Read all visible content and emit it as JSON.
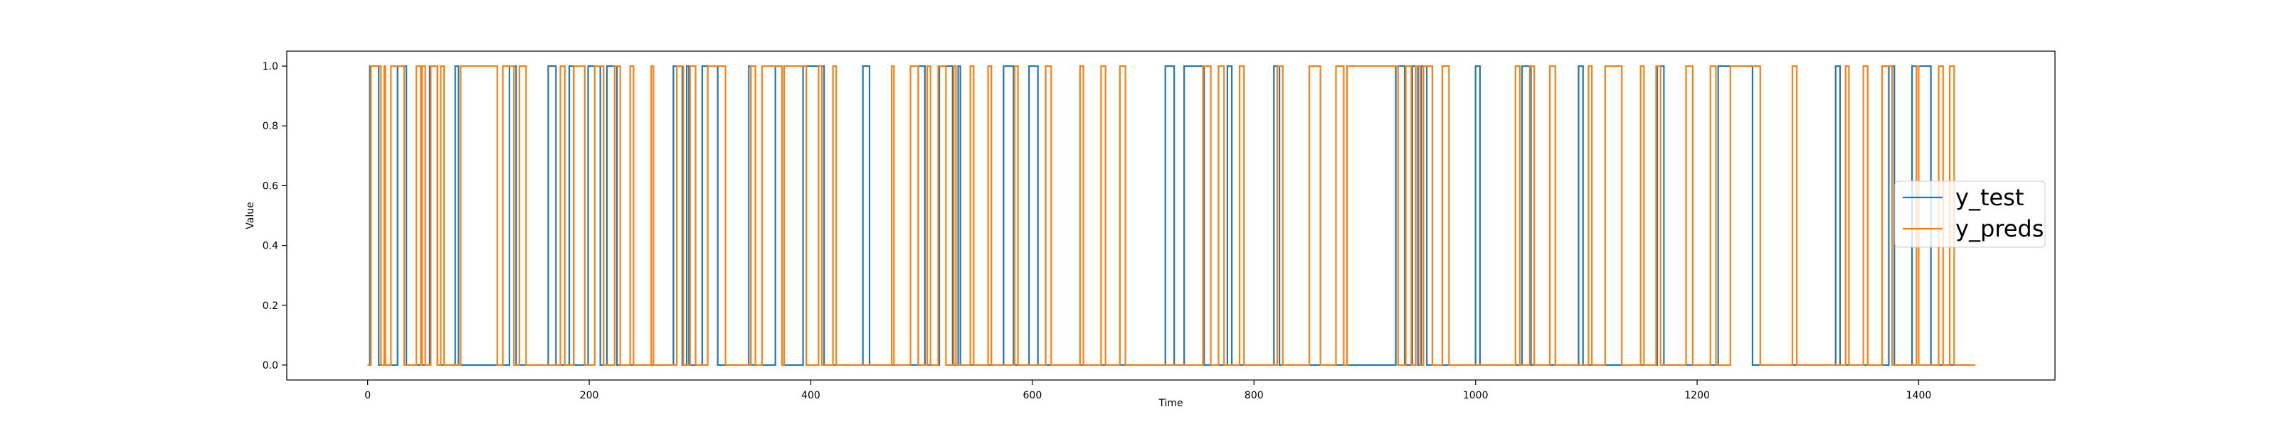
{
  "chart_data": {
    "type": "line",
    "title": "",
    "xlabel": "Time",
    "ylabel": "Value",
    "xlim": [
      -73,
      1523
    ],
    "ylim": [
      -0.05,
      1.05
    ],
    "x_ticks": [
      0,
      200,
      400,
      600,
      800,
      1000,
      1200,
      1400
    ],
    "y_ticks": [
      0.0,
      0.2,
      0.4,
      0.6,
      0.8,
      1.0
    ],
    "x_tick_labels": [
      "0",
      "200",
      "400",
      "600",
      "800",
      "1000",
      "1200",
      "1400"
    ],
    "y_tick_labels": [
      "0.0",
      "0.2",
      "0.4",
      "0.6",
      "0.8",
      "1.0"
    ],
    "grid": false,
    "legend_position": "center-right",
    "x_range": [
      0,
      1451
    ],
    "series": [
      {
        "name": "y_test",
        "color": "#1f77b4",
        "ones_intervals": [
          [
            2,
            10
          ],
          [
            27,
            35
          ],
          [
            56,
            63
          ],
          [
            79,
            82
          ],
          [
            128,
            134
          ],
          [
            163,
            170
          ],
          [
            182,
            186
          ],
          [
            199,
            210
          ],
          [
            216,
            225
          ],
          [
            276,
            284
          ],
          [
            288,
            290
          ],
          [
            302,
            316
          ],
          [
            344,
            346
          ],
          [
            368,
            374
          ],
          [
            393,
            412
          ],
          [
            447,
            453
          ],
          [
            497,
            503
          ],
          [
            516,
            528
          ],
          [
            533,
            535
          ],
          [
            574,
            583
          ],
          [
            597,
            605
          ],
          [
            720,
            728
          ],
          [
            737,
            755
          ],
          [
            776,
            780
          ],
          [
            818,
            823
          ],
          [
            928,
            936
          ],
          [
            943,
            948
          ],
          [
            951,
            956
          ],
          [
            1000,
            1004
          ],
          [
            1042,
            1050
          ],
          [
            1093,
            1097
          ],
          [
            1164,
            1170
          ],
          [
            1219,
            1250
          ],
          [
            1325,
            1329
          ],
          [
            1373,
            1378
          ],
          [
            1394,
            1411
          ]
        ]
      },
      {
        "name": "y_preds",
        "color": "#ff7f0e",
        "ones_intervals": [
          [
            3,
            12
          ],
          [
            15,
            16
          ],
          [
            21,
            33
          ],
          [
            44,
            48
          ],
          [
            49,
            52
          ],
          [
            57,
            63
          ],
          [
            66,
            69
          ],
          [
            84,
            117
          ],
          [
            122,
            132
          ],
          [
            137,
            143
          ],
          [
            174,
            178
          ],
          [
            186,
            196
          ],
          [
            205,
            213
          ],
          [
            223,
            228
          ],
          [
            237,
            240
          ],
          [
            256,
            258
          ],
          [
            279,
            285
          ],
          [
            291,
            296
          ],
          [
            307,
            323
          ],
          [
            346,
            350
          ],
          [
            356,
            374
          ],
          [
            376,
            396
          ],
          [
            407,
            410
          ],
          [
            420,
            423
          ],
          [
            473,
            475
          ],
          [
            490,
            497
          ],
          [
            505,
            508
          ],
          [
            515,
            522
          ],
          [
            529,
            531
          ],
          [
            544,
            547
          ],
          [
            560,
            563
          ],
          [
            584,
            587
          ],
          [
            612,
            617
          ],
          [
            643,
            646
          ],
          [
            662,
            666
          ],
          [
            679,
            684
          ],
          [
            754,
            761
          ],
          [
            768,
            773
          ],
          [
            787,
            791
          ],
          [
            821,
            826
          ],
          [
            850,
            860
          ],
          [
            874,
            881
          ],
          [
            884,
            930
          ],
          [
            937,
            942
          ],
          [
            946,
            950
          ],
          [
            953,
            961
          ],
          [
            970,
            976
          ],
          [
            1036,
            1040
          ],
          [
            1049,
            1053
          ],
          [
            1067,
            1072
          ],
          [
            1102,
            1105
          ],
          [
            1117,
            1132
          ],
          [
            1149,
            1152
          ],
          [
            1163,
            1167
          ],
          [
            1190,
            1196
          ],
          [
            1212,
            1217
          ],
          [
            1230,
            1257
          ],
          [
            1286,
            1290
          ],
          [
            1334,
            1337
          ],
          [
            1350,
            1354
          ],
          [
            1367,
            1376
          ],
          [
            1398,
            1400
          ],
          [
            1418,
            1422
          ],
          [
            1428,
            1432
          ]
        ]
      }
    ]
  }
}
